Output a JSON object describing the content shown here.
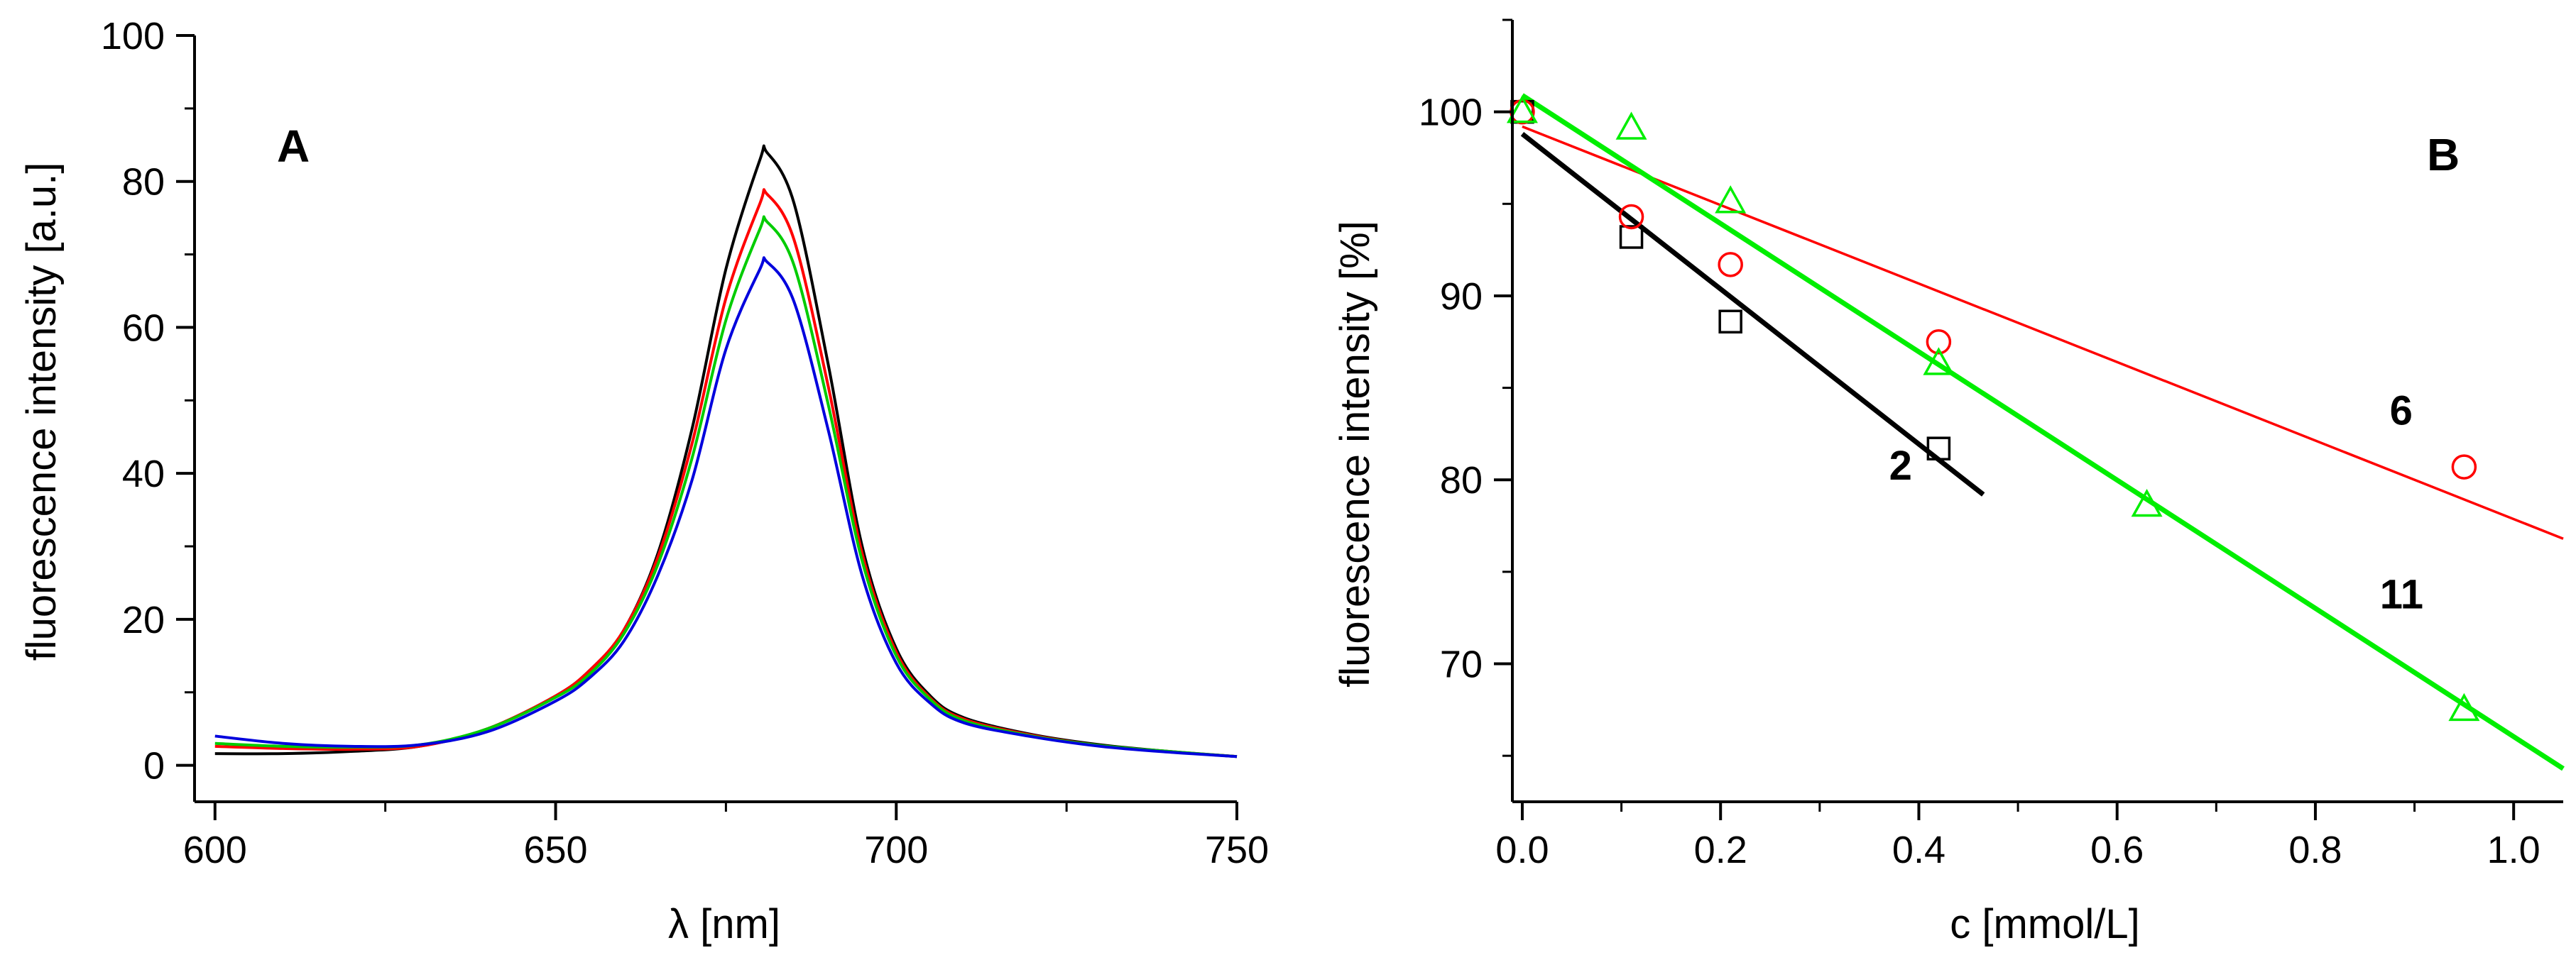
{
  "chart_data": [
    {
      "type": "line",
      "panel_label": "A",
      "xlabel": "λ [nm]",
      "ylabel": "fluorescence intensity [a.u.]",
      "xlim": [
        597,
        750
      ],
      "ylim": [
        -5,
        100
      ],
      "xticks": [
        600,
        650,
        700,
        750
      ],
      "yticks": [
        0,
        20,
        40,
        60,
        80,
        100
      ],
      "x": [
        600,
        610,
        620,
        630,
        640,
        650,
        655,
        660,
        665,
        670,
        675,
        680,
        681,
        685,
        690,
        695,
        700,
        705,
        710,
        720,
        730,
        740,
        750
      ],
      "series": [
        {
          "name": "black",
          "color": "#000000",
          "values": [
            1.6,
            1.6,
            1.9,
            2.6,
            5.0,
            9.5,
            13.0,
            18.5,
            29.0,
            46.0,
            68.0,
            83.0,
            84.0,
            77.0,
            55.0,
            30.0,
            16.0,
            9.5,
            6.5,
            4.2,
            2.8,
            1.9,
            1.2
          ]
        },
        {
          "name": "red",
          "color": "#ff0000",
          "values": [
            2.6,
            2.3,
            2.2,
            2.6,
            5.0,
            9.5,
            13.0,
            18.5,
            28.5,
            44.0,
            64.0,
            77.0,
            78.3,
            72.0,
            52.0,
            29.0,
            15.5,
            9.2,
            6.3,
            4.1,
            2.7,
            1.9,
            1.2
          ]
        },
        {
          "name": "green",
          "color": "#00cc00",
          "values": [
            3.0,
            2.6,
            2.5,
            2.8,
            5.0,
            9.3,
            12.5,
            18.0,
            27.5,
            42.0,
            61.0,
            73.5,
            74.5,
            68.5,
            49.5,
            28.0,
            15.0,
            9.0,
            6.1,
            4.0,
            2.7,
            1.9,
            1.2
          ]
        },
        {
          "name": "blue",
          "color": "#0000dd",
          "values": [
            4.0,
            3.0,
            2.6,
            2.8,
            4.6,
            8.8,
            12.0,
            17.0,
            26.0,
            39.0,
            57.0,
            68.0,
            69.0,
            63.5,
            46.0,
            26.0,
            14.0,
            8.5,
            5.8,
            3.9,
            2.6,
            1.8,
            1.2
          ]
        }
      ]
    },
    {
      "type": "scatter",
      "panel_label": "B",
      "xlabel": "c [mmol/L]",
      "ylabel": "fluorescence intensity [%]",
      "xlim": [
        -0.01,
        1.05
      ],
      "ylim": [
        62.5,
        105
      ],
      "xticks": [
        0.0,
        0.2,
        0.4,
        0.6,
        0.8,
        1.0
      ],
      "xtick_labels": [
        "0.0",
        "0.2",
        "0.4",
        "0.6",
        "0.8",
        "1.0"
      ],
      "yticks": [
        70,
        80,
        90,
        100
      ],
      "series": [
        {
          "name": "2",
          "label": "2",
          "marker": "square",
          "color": "#000000",
          "line_width": "thick",
          "x": [
            0.0,
            0.11,
            0.21,
            0.42
          ],
          "y": [
            100,
            93.2,
            88.6,
            81.7
          ],
          "fit": {
            "x": [
              0.0,
              0.465
            ],
            "y": [
              98.8,
              79.2
            ]
          },
          "label_pos": {
            "x": 0.37,
            "y": 80.0
          }
        },
        {
          "name": "6",
          "label": "6",
          "marker": "circle",
          "color": "#ff0000",
          "line_width": "thin",
          "x": [
            0.0,
            0.11,
            0.21,
            0.42,
            0.95
          ],
          "y": [
            100,
            94.3,
            91.7,
            87.5,
            80.7
          ],
          "fit": {
            "x": [
              0.0,
              1.05
            ],
            "y": [
              99.2,
              76.8
            ]
          },
          "label_pos": {
            "x": 0.875,
            "y": 83.0
          }
        },
        {
          "name": "11",
          "label": "11",
          "marker": "triangle",
          "color": "#00ee00",
          "line_width": "thick",
          "x": [
            0.0,
            0.11,
            0.21,
            0.42,
            0.63,
            0.95
          ],
          "y": [
            100,
            99.1,
            95.1,
            86.3,
            78.6,
            67.5
          ],
          "fit": {
            "x": [
              0.0,
              1.05
            ],
            "y": [
              100.9,
              64.3
            ]
          },
          "label_pos": {
            "x": 0.865,
            "y": 73.0
          }
        }
      ]
    }
  ]
}
